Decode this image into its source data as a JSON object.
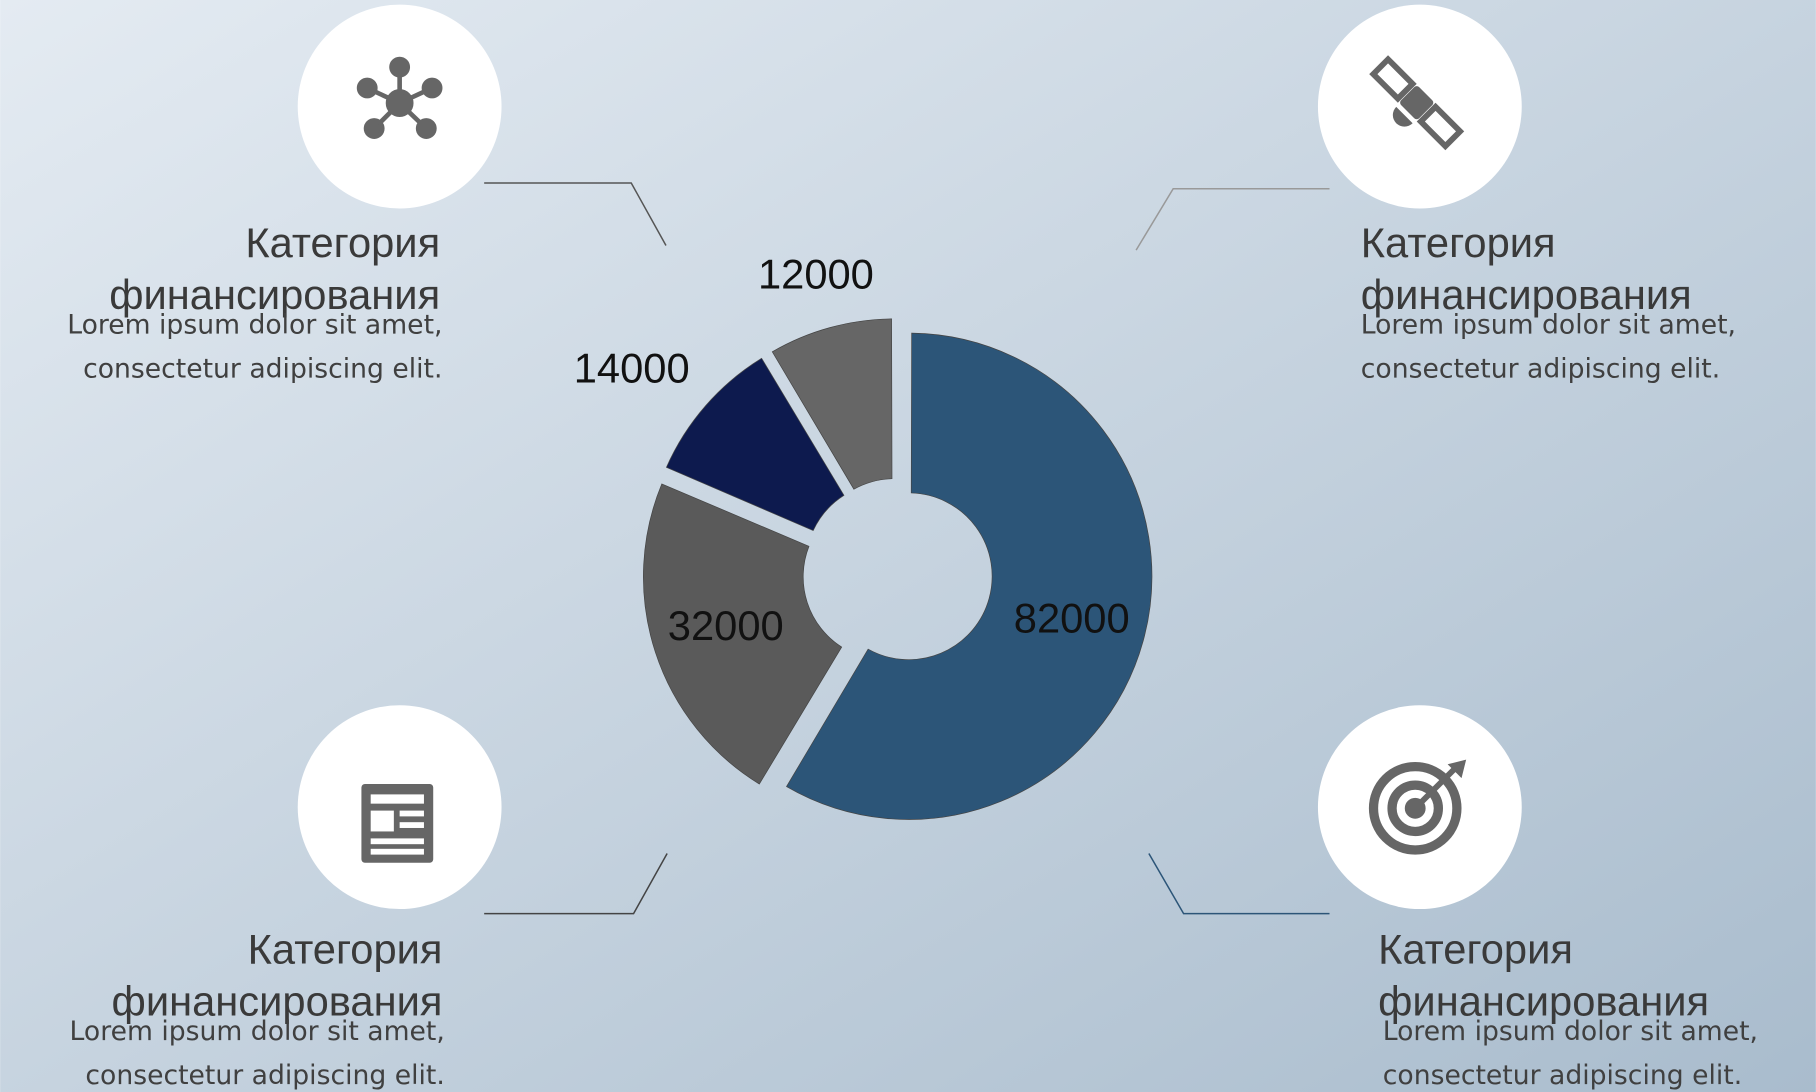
{
  "chart_data": {
    "type": "donut",
    "values": [
      82000,
      32000,
      14000,
      12000
    ],
    "colors": [
      "#2c5578",
      "#5a5a5a",
      "#0d1a4e",
      "#666666"
    ]
  },
  "cards": [
    {
      "title": [
        "Категория",
        "финансирования"
      ],
      "text": [
        "Lorem ipsum dolor sit amet,",
        "consectetur adipiscing elit."
      ]
    },
    {
      "title": [
        "Категория",
        "финансирования"
      ],
      "text": [
        "Lorem ipsum dolor sit amet,",
        "consectetur adipiscing elit."
      ]
    },
    {
      "title": [
        "Категория",
        "финансирования"
      ],
      "text": [
        "Lorem ipsum dolor sit amet,",
        "consectetur adipiscing elit."
      ]
    },
    {
      "title": [
        "Категория",
        "финансирования"
      ],
      "text": [
        "Lorem ipsum dolor sit amet,",
        "consectetur adipiscing elit."
      ]
    }
  ]
}
